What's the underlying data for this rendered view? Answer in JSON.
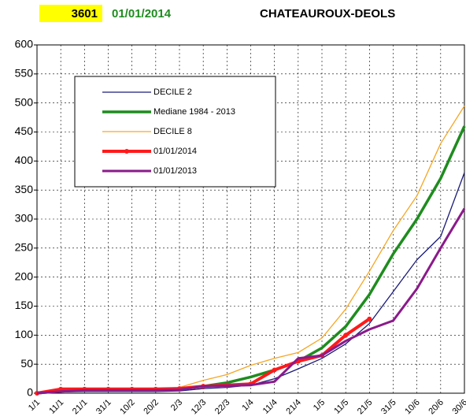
{
  "chart_data": {
    "type": "line",
    "code": "3601",
    "date": "01/01/2014",
    "title": "CHATEAUROUX-DEOLS",
    "categories": [
      "1/1",
      "11/1",
      "21/1",
      "31/1",
      "10/2",
      "20/2",
      "2/3",
      "12/3",
      "22/3",
      "1/4",
      "11/4",
      "21/4",
      "1/5",
      "11/5",
      "21/5",
      "31/5",
      "10/6",
      "20/6",
      "30/6"
    ],
    "series": [
      {
        "name": "DECILE 2",
        "color": "#1a1a7a",
        "width": 1.3,
        "values": [
          0,
          2,
          3,
          3,
          3,
          3,
          4,
          8,
          10,
          14,
          25,
          42,
          60,
          85,
          120,
          175,
          230,
          270,
          380
        ]
      },
      {
        "name": "Mediane 1984 - 2013",
        "color": "#1e8c1e",
        "width": 3.5,
        "values": [
          0,
          4,
          5,
          5,
          5,
          5,
          7,
          12,
          18,
          28,
          40,
          55,
          78,
          115,
          170,
          240,
          300,
          370,
          460
        ]
      },
      {
        "name": "DECILE 8",
        "color": "#f5a623",
        "width": 1.3,
        "values": [
          0,
          5,
          6,
          6,
          6,
          7,
          10,
          22,
          32,
          48,
          60,
          70,
          95,
          145,
          210,
          280,
          340,
          430,
          495
        ]
      },
      {
        "name": "01/01/2014",
        "color": "#ff1a1a",
        "width": 4,
        "markers": true,
        "values": [
          0,
          7,
          7,
          7,
          7,
          7,
          8,
          12,
          14,
          16,
          40,
          55,
          65,
          100,
          128,
          null,
          null,
          null,
          null
        ]
      },
      {
        "name": "01/01/2013",
        "color": "#8b1a8b",
        "width": 3,
        "values": [
          0,
          3,
          5,
          5,
          5,
          5,
          6,
          12,
          13,
          14,
          20,
          60,
          65,
          90,
          110,
          125,
          180,
          250,
          318
        ]
      }
    ],
    "ylim": [
      0,
      600
    ],
    "yticks": [
      0,
      50,
      100,
      150,
      200,
      250,
      300,
      350,
      400,
      450,
      500,
      550,
      600
    ],
    "grid": true
  }
}
